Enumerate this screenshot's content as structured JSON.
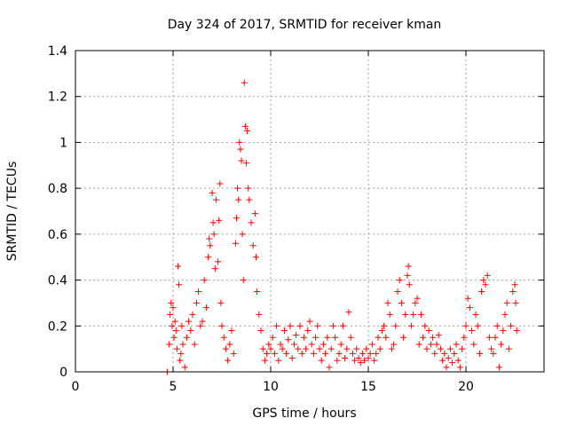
{
  "chart_data": {
    "type": "scatter",
    "title": "Day 324 of 2017, SRMTID for receiver kman",
    "xlabel": "GPS time / hours",
    "ylabel": "SRMTID / TECUs",
    "xlim": [
      0,
      24
    ],
    "ylim": [
      0,
      1.4
    ],
    "xticks": [
      0,
      5,
      10,
      15,
      20
    ],
    "xtick_labels": [
      "0",
      "5",
      "10",
      "15",
      "20"
    ],
    "yticks": [
      0,
      0.2,
      0.4,
      0.6,
      0.8,
      1.0,
      1.2,
      1.4
    ],
    "ytick_labels": [
      "0",
      "0.2",
      "0.4",
      "0.6",
      "0.8",
      "1",
      "1.2",
      "1.4"
    ],
    "grid": true,
    "marker": "+",
    "color": "#ff0000",
    "series": [
      {
        "name": "SRMTID",
        "points": [
          [
            4.7,
            0.0
          ],
          [
            4.8,
            0.12
          ],
          [
            4.85,
            0.25
          ],
          [
            4.9,
            0.3
          ],
          [
            4.95,
            0.2
          ],
          [
            5.0,
            0.28
          ],
          [
            5.05,
            0.15
          ],
          [
            5.1,
            0.22
          ],
          [
            5.15,
            0.18
          ],
          [
            5.2,
            0.1
          ],
          [
            5.25,
            0.46
          ],
          [
            5.3,
            0.38
          ],
          [
            5.35,
            0.05
          ],
          [
            5.4,
            0.08
          ],
          [
            5.45,
            0.2
          ],
          [
            5.5,
            0.12
          ],
          [
            5.6,
            0.02
          ],
          [
            5.7,
            0.15
          ],
          [
            5.8,
            0.22
          ],
          [
            5.9,
            0.18
          ],
          [
            6.0,
            0.25
          ],
          [
            6.1,
            0.12
          ],
          [
            6.2,
            0.3
          ],
          [
            6.3,
            0.35
          ],
          [
            6.4,
            0.2
          ],
          [
            6.5,
            0.22
          ],
          [
            6.6,
            0.4
          ],
          [
            6.7,
            0.28
          ],
          [
            6.8,
            0.5
          ],
          [
            6.85,
            0.58
          ],
          [
            6.9,
            0.55
          ],
          [
            7.0,
            0.78
          ],
          [
            7.05,
            0.65
          ],
          [
            7.1,
            0.6
          ],
          [
            7.15,
            0.45
          ],
          [
            7.2,
            0.75
          ],
          [
            7.3,
            0.48
          ],
          [
            7.35,
            0.66
          ],
          [
            7.4,
            0.82
          ],
          [
            7.45,
            0.3
          ],
          [
            7.5,
            0.2
          ],
          [
            7.6,
            0.15
          ],
          [
            7.7,
            0.1
          ],
          [
            7.8,
            0.05
          ],
          [
            7.9,
            0.12
          ],
          [
            8.0,
            0.18
          ],
          [
            8.1,
            0.08
          ],
          [
            8.2,
            0.56
          ],
          [
            8.25,
            0.67
          ],
          [
            8.3,
            0.8
          ],
          [
            8.35,
            0.75
          ],
          [
            8.4,
            1.0
          ],
          [
            8.45,
            0.97
          ],
          [
            8.5,
            0.92
          ],
          [
            8.55,
            0.6
          ],
          [
            8.6,
            0.4
          ],
          [
            8.65,
            1.26
          ],
          [
            8.7,
            1.07
          ],
          [
            8.75,
            0.91
          ],
          [
            8.8,
            1.05
          ],
          [
            8.85,
            0.8
          ],
          [
            8.9,
            0.75
          ],
          [
            9.0,
            0.65
          ],
          [
            9.1,
            0.55
          ],
          [
            9.2,
            0.69
          ],
          [
            9.25,
            0.5
          ],
          [
            9.3,
            0.35
          ],
          [
            9.4,
            0.25
          ],
          [
            9.5,
            0.18
          ],
          [
            9.6,
            0.1
          ],
          [
            9.7,
            0.05
          ],
          [
            9.8,
            0.08
          ],
          [
            9.9,
            0.12
          ],
          [
            10.0,
            0.1
          ],
          [
            10.1,
            0.15
          ],
          [
            10.2,
            0.08
          ],
          [
            10.3,
            0.2
          ],
          [
            10.4,
            0.05
          ],
          [
            10.5,
            0.12
          ],
          [
            10.6,
            0.1
          ],
          [
            10.7,
            0.18
          ],
          [
            10.8,
            0.08
          ],
          [
            10.9,
            0.14
          ],
          [
            11.0,
            0.2
          ],
          [
            11.1,
            0.06
          ],
          [
            11.2,
            0.12
          ],
          [
            11.3,
            0.16
          ],
          [
            11.4,
            0.1
          ],
          [
            11.5,
            0.2
          ],
          [
            11.6,
            0.08
          ],
          [
            11.7,
            0.15
          ],
          [
            11.8,
            0.1
          ],
          [
            11.9,
            0.18
          ],
          [
            12.0,
            0.22
          ],
          [
            12.1,
            0.12
          ],
          [
            12.2,
            0.08
          ],
          [
            12.3,
            0.15
          ],
          [
            12.4,
            0.2
          ],
          [
            12.5,
            0.1
          ],
          [
            12.6,
            0.05
          ],
          [
            12.7,
            0.12
          ],
          [
            12.8,
            0.08
          ],
          [
            12.9,
            0.15
          ],
          [
            13.0,
            0.02
          ],
          [
            13.1,
            0.1
          ],
          [
            13.2,
            0.2
          ],
          [
            13.3,
            0.15
          ],
          [
            13.4,
            0.05
          ],
          [
            13.5,
            0.08
          ],
          [
            13.6,
            0.12
          ],
          [
            13.7,
            0.2
          ],
          [
            13.8,
            0.06
          ],
          [
            13.9,
            0.1
          ],
          [
            14.0,
            0.26
          ],
          [
            14.1,
            0.15
          ],
          [
            14.2,
            0.08
          ],
          [
            14.3,
            0.05
          ],
          [
            14.4,
            0.1
          ],
          [
            14.5,
            0.06
          ],
          [
            14.6,
            0.04
          ],
          [
            14.7,
            0.08
          ],
          [
            14.8,
            0.05
          ],
          [
            14.9,
            0.1
          ],
          [
            15.0,
            0.06
          ],
          [
            15.1,
            0.08
          ],
          [
            15.2,
            0.12
          ],
          [
            15.3,
            0.05
          ],
          [
            15.4,
            0.08
          ],
          [
            15.5,
            0.15
          ],
          [
            15.6,
            0.1
          ],
          [
            15.7,
            0.18
          ],
          [
            15.8,
            0.2
          ],
          [
            15.9,
            0.15
          ],
          [
            16.0,
            0.3
          ],
          [
            16.1,
            0.25
          ],
          [
            16.2,
            0.1
          ],
          [
            16.3,
            0.12
          ],
          [
            16.4,
            0.2
          ],
          [
            16.5,
            0.35
          ],
          [
            16.6,
            0.4
          ],
          [
            16.7,
            0.3
          ],
          [
            16.8,
            0.15
          ],
          [
            16.9,
            0.25
          ],
          [
            17.0,
            0.42
          ],
          [
            17.05,
            0.46
          ],
          [
            17.1,
            0.38
          ],
          [
            17.2,
            0.2
          ],
          [
            17.3,
            0.25
          ],
          [
            17.4,
            0.3
          ],
          [
            17.5,
            0.32
          ],
          [
            17.6,
            0.12
          ],
          [
            17.7,
            0.25
          ],
          [
            17.8,
            0.15
          ],
          [
            17.9,
            0.2
          ],
          [
            18.0,
            0.1
          ],
          [
            18.1,
            0.18
          ],
          [
            18.2,
            0.12
          ],
          [
            18.3,
            0.15
          ],
          [
            18.4,
            0.08
          ],
          [
            18.5,
            0.12
          ],
          [
            18.6,
            0.16
          ],
          [
            18.7,
            0.1
          ],
          [
            18.8,
            0.05
          ],
          [
            18.9,
            0.08
          ],
          [
            19.0,
            0.02
          ],
          [
            19.1,
            0.06
          ],
          [
            19.2,
            0.1
          ],
          [
            19.3,
            0.04
          ],
          [
            19.4,
            0.08
          ],
          [
            19.5,
            0.12
          ],
          [
            19.6,
            0.05
          ],
          [
            19.7,
            0.02
          ],
          [
            19.8,
            0.1
          ],
          [
            19.9,
            0.15
          ],
          [
            20.0,
            0.2
          ],
          [
            20.1,
            0.32
          ],
          [
            20.2,
            0.28
          ],
          [
            20.3,
            0.18
          ],
          [
            20.4,
            0.12
          ],
          [
            20.5,
            0.25
          ],
          [
            20.6,
            0.2
          ],
          [
            20.7,
            0.08
          ],
          [
            20.8,
            0.35
          ],
          [
            20.9,
            0.4
          ],
          [
            21.0,
            0.38
          ],
          [
            21.1,
            0.42
          ],
          [
            21.2,
            0.15
          ],
          [
            21.3,
            0.1
          ],
          [
            21.4,
            0.08
          ],
          [
            21.5,
            0.15
          ],
          [
            21.6,
            0.2
          ],
          [
            21.7,
            0.02
          ],
          [
            21.8,
            0.12
          ],
          [
            21.9,
            0.18
          ],
          [
            22.0,
            0.25
          ],
          [
            22.1,
            0.3
          ],
          [
            22.2,
            0.1
          ],
          [
            22.3,
            0.2
          ],
          [
            22.4,
            0.35
          ],
          [
            22.5,
            0.38
          ],
          [
            22.55,
            0.3
          ],
          [
            22.6,
            0.18
          ]
        ]
      }
    ]
  }
}
